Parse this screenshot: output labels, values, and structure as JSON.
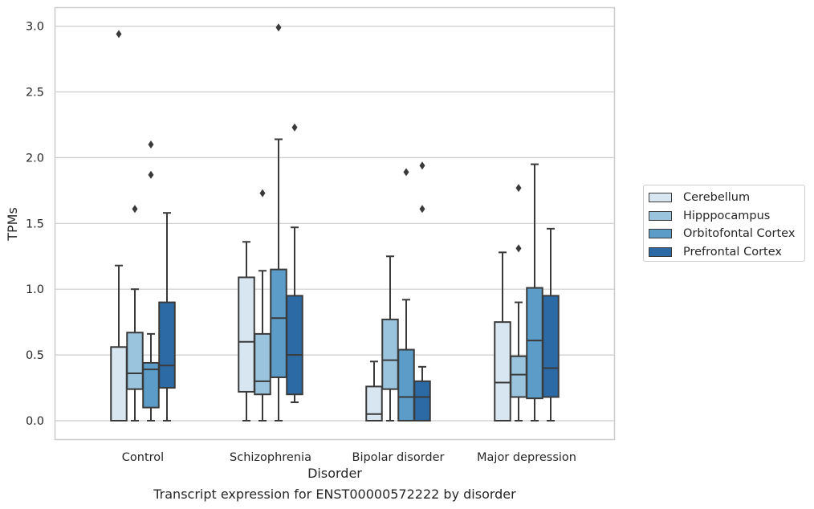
{
  "chart_data": {
    "type": "box",
    "xlabel": "Disorder",
    "ylabel": "TPMs",
    "ylim": [
      -0.14,
      3.15
    ],
    "yticks": [
      "0.0",
      "0.5",
      "1.0",
      "1.5",
      "2.0",
      "2.5",
      "3.0"
    ],
    "grid": "horizontal",
    "legend_position": "right",
    "categories": [
      "Control",
      "Schizophrenia",
      "Bipolar disorder",
      "Major depression"
    ],
    "series": [
      {
        "name": "Cerebellum",
        "color": "#d8e6f2",
        "boxes": [
          {
            "q1": 0.0,
            "median": 0.0,
            "q3": 0.56,
            "whisker_low": 0.0,
            "whisker_high": 1.18,
            "outliers": [
              2.94
            ]
          },
          {
            "q1": 0.22,
            "median": 0.6,
            "q3": 1.09,
            "whisker_low": 0.0,
            "whisker_high": 1.36,
            "outliers": []
          },
          {
            "q1": 0.0,
            "median": 0.05,
            "q3": 0.26,
            "whisker_low": 0.0,
            "whisker_high": 0.45,
            "outliers": []
          },
          {
            "q1": 0.0,
            "median": 0.29,
            "q3": 0.75,
            "whisker_low": 0.0,
            "whisker_high": 1.28,
            "outliers": []
          }
        ]
      },
      {
        "name": "Hipppocampus",
        "color": "#9ac4dd",
        "boxes": [
          {
            "q1": 0.24,
            "median": 0.36,
            "q3": 0.67,
            "whisker_low": 0.0,
            "whisker_high": 1.0,
            "outliers": [
              1.61
            ]
          },
          {
            "q1": 0.2,
            "median": 0.3,
            "q3": 0.66,
            "whisker_low": 0.0,
            "whisker_high": 1.14,
            "outliers": [
              1.73
            ]
          },
          {
            "q1": 0.24,
            "median": 0.46,
            "q3": 0.77,
            "whisker_low": 0.0,
            "whisker_high": 1.25,
            "outliers": []
          },
          {
            "q1": 0.18,
            "median": 0.35,
            "q3": 0.49,
            "whisker_low": 0.0,
            "whisker_high": 0.9,
            "outliers": [
              1.31,
              1.77
            ]
          }
        ]
      },
      {
        "name": "Orbitofontal Cortex",
        "color": "#5b9cc8",
        "boxes": [
          {
            "q1": 0.1,
            "median": 0.39,
            "q3": 0.44,
            "whisker_low": 0.0,
            "whisker_high": 0.66,
            "outliers": [
              1.87,
              2.1
            ]
          },
          {
            "q1": 0.33,
            "median": 0.78,
            "q3": 1.15,
            "whisker_low": 0.0,
            "whisker_high": 2.14,
            "outliers": [
              2.99
            ]
          },
          {
            "q1": 0.0,
            "median": 0.18,
            "q3": 0.54,
            "whisker_low": 0.0,
            "whisker_high": 0.92,
            "outliers": [
              1.89
            ]
          },
          {
            "q1": 0.17,
            "median": 0.61,
            "q3": 1.01,
            "whisker_low": 0.0,
            "whisker_high": 1.95,
            "outliers": []
          }
        ]
      },
      {
        "name": "Prefrontal Cortex",
        "color": "#2c6aa6",
        "boxes": [
          {
            "q1": 0.25,
            "median": 0.42,
            "q3": 0.9,
            "whisker_low": 0.0,
            "whisker_high": 1.58,
            "outliers": []
          },
          {
            "q1": 0.2,
            "median": 0.5,
            "q3": 0.95,
            "whisker_low": 0.14,
            "whisker_high": 1.47,
            "outliers": [
              2.23
            ]
          },
          {
            "q1": 0.0,
            "median": 0.18,
            "q3": 0.3,
            "whisker_low": 0.0,
            "whisker_high": 0.41,
            "outliers": [
              1.61,
              1.94
            ]
          },
          {
            "q1": 0.18,
            "median": 0.4,
            "q3": 0.95,
            "whisker_low": 0.0,
            "whisker_high": 1.46,
            "outliers": []
          }
        ]
      }
    ]
  },
  "caption": "Transcript expression for ENST00000572222 by disorder",
  "colors": {
    "grid": "#cccccc",
    "frame": "#cccccc",
    "box_edge": "#3a3a3a",
    "text": "#262626"
  }
}
